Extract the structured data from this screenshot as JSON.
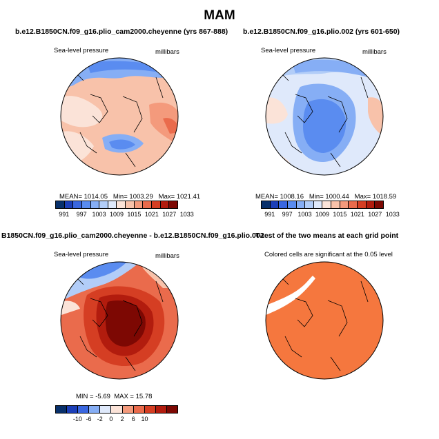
{
  "main_title": "MAM",
  "chart_data": [
    {
      "type": "heatmap",
      "title": "b.e12.B1850CN.f09_g16.plio_cam2000.cheyenne (yrs 867-888)",
      "variable": "Sea-level pressure",
      "units": "millibars",
      "stats": {
        "mean_label": "MEAN=",
        "mean": "1014.05",
        "min_label": "Min=",
        "min": "1003.29",
        "max_label": "Max=",
        "max": "1021.41"
      },
      "levels": [
        "991",
        "997",
        "1003",
        "1009",
        "1015",
        "1021",
        "1027",
        "1033"
      ],
      "colors": [
        "#08306b",
        "#1c3fb8",
        "#3a67e0",
        "#5a8cf0",
        "#86aef5",
        "#b2cdf8",
        "#dfe9fb",
        "#fbe3d8",
        "#f8c2aa",
        "#f49a7c",
        "#ea6b4c",
        "#d53e23",
        "#b21c0e",
        "#7d0803"
      ]
    },
    {
      "type": "heatmap",
      "title": "b.e12.B1850CN.f09_g16.plio.002 (yrs 601-650)",
      "variable": "Sea-level pressure",
      "units": "millibars",
      "stats": {
        "mean_label": "MEAN=",
        "mean": "1008.16",
        "min_label": "Min=",
        "min": "1000.44",
        "max_label": "Max=",
        "max": "1018.59"
      },
      "levels": [
        "991",
        "997",
        "1003",
        "1009",
        "1015",
        "1021",
        "1027",
        "1033"
      ],
      "colors": [
        "#08306b",
        "#1c3fb8",
        "#3a67e0",
        "#5a8cf0",
        "#86aef5",
        "#b2cdf8",
        "#dfe9fb",
        "#fbe3d8",
        "#f8c2aa",
        "#f49a7c",
        "#ea6b4c",
        "#d53e23",
        "#b21c0e",
        "#7d0803"
      ]
    },
    {
      "type": "heatmap",
      "title": "B1850CN.f09_g16.plio_cam2000.cheyenne - b.e12.B1850CN.f09_g16.plio.002",
      "variable": "Sea-level pressure",
      "units": "millibars",
      "stats": {
        "min_label": "MIN =",
        "min": "-5.69",
        "max_label": "MAX =",
        "max": "15.78"
      },
      "levels": [
        "-10",
        "-6",
        "-2",
        "0",
        "2",
        "6",
        "10"
      ],
      "colors": [
        "#08306b",
        "#1c3fb8",
        "#3a67e0",
        "#86aef5",
        "#dfe9fb",
        "#fbe3d8",
        "#f49a7c",
        "#ea6b4c",
        "#d53e23",
        "#b21c0e",
        "#7d0803"
      ]
    },
    {
      "type": "heatmap",
      "title": "T-test of the two means at each grid point",
      "annotation": "Colored cells are significant at the 0.05 level",
      "significant_color": "#f5773e"
    }
  ]
}
